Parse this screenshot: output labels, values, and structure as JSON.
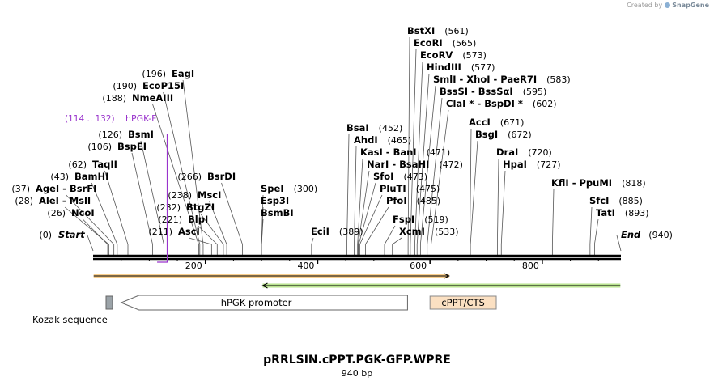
{
  "app": {
    "credit_prefix": "Created by",
    "credit_brand": "SnapGene"
  },
  "map": {
    "title": "pRRLSIN.cPPT.PGK-GFP.WPRE",
    "length_label": "940 bp",
    "length": 940,
    "ruler_ticks": [
      200,
      400,
      600,
      800
    ],
    "ends": [
      {
        "name": "Start",
        "pos": 0,
        "pos_label": "(0)"
      },
      {
        "name": "End",
        "pos": 940,
        "pos_label": "(940)"
      }
    ]
  },
  "sites": [
    {
      "label": "NcoI",
      "pos": 26,
      "pos_label": "(26)"
    },
    {
      "label": "AleI  -  MslI",
      "pos": 28,
      "pos_label": "(28)"
    },
    {
      "label": "AgeI  -  BsrFI",
      "pos": 37,
      "pos_label": "(37)"
    },
    {
      "label": "BamHI",
      "pos": 43,
      "pos_label": "(43)"
    },
    {
      "label": "TaqII",
      "pos": 62,
      "pos_label": "(62)"
    },
    {
      "label": "BspEI",
      "pos": 106,
      "pos_label": "(106)"
    },
    {
      "label": "BsmI",
      "pos": 126,
      "pos_label": "(126)"
    },
    {
      "label": "NmeAIII",
      "pos": 188,
      "pos_label": "(188)"
    },
    {
      "label": "EcoP15I",
      "pos": 190,
      "pos_label": "(190)"
    },
    {
      "label": "EagI",
      "pos": 196,
      "pos_label": "(196)"
    },
    {
      "label": "AscI",
      "pos": 211,
      "pos_label": "(211)"
    },
    {
      "label": "BlpI",
      "pos": 221,
      "pos_label": "(221)"
    },
    {
      "label": "BtgZI",
      "pos": 232,
      "pos_label": "(232)"
    },
    {
      "label": "MscI",
      "pos": 238,
      "pos_label": "(238)"
    },
    {
      "label": "BsrDI",
      "pos": 266,
      "pos_label": "(266)"
    },
    {
      "label": "SpeI",
      "pos": 300,
      "pos_label": "(300)"
    },
    {
      "label": "Esp3I",
      "pos": 300,
      "pos_label": ""
    },
    {
      "label": "BsmBI",
      "pos": 300,
      "pos_label": ""
    },
    {
      "label": "EciI",
      "pos": 389,
      "pos_label": "(389)"
    },
    {
      "label": "BsaI",
      "pos": 452,
      "pos_label": "(452)"
    },
    {
      "label": "AhdI",
      "pos": 465,
      "pos_label": "(465)"
    },
    {
      "label": "KasI  -  BanI",
      "pos": 471,
      "pos_label": "(471)"
    },
    {
      "label": "NarI  -  BsaHI",
      "pos": 472,
      "pos_label": "(472)"
    },
    {
      "label": "SfoI",
      "pos": 473,
      "pos_label": "(473)"
    },
    {
      "label": "PluTI",
      "pos": 475,
      "pos_label": "(475)"
    },
    {
      "label": "PfoI",
      "pos": 485,
      "pos_label": "(485)"
    },
    {
      "label": "FspI",
      "pos": 519,
      "pos_label": "(519)"
    },
    {
      "label": "XcmI",
      "pos": 533,
      "pos_label": "(533)"
    },
    {
      "label": "BstXI",
      "pos": 561,
      "pos_label": "(561)"
    },
    {
      "label": "EcoRI",
      "pos": 565,
      "pos_label": "(565)"
    },
    {
      "label": "EcoRV",
      "pos": 573,
      "pos_label": "(573)"
    },
    {
      "label": "HindIII",
      "pos": 577,
      "pos_label": "(577)"
    },
    {
      "label": "SmlI  -  XhoI  -  PaeR7I",
      "pos": 583,
      "pos_label": "(583)"
    },
    {
      "label": "BssSI  -  BssSαI",
      "pos": 595,
      "pos_label": "(595)"
    },
    {
      "label": "ClaI *  -  BspDI *",
      "pos": 602,
      "pos_label": "(602)"
    },
    {
      "label": "AccI",
      "pos": 671,
      "pos_label": "(671)"
    },
    {
      "label": "BsgI",
      "pos": 672,
      "pos_label": "(672)"
    },
    {
      "label": "DraI",
      "pos": 720,
      "pos_label": "(720)"
    },
    {
      "label": "HpaI",
      "pos": 727,
      "pos_label": "(727)"
    },
    {
      "label": "KflI  -  PpuMI",
      "pos": 818,
      "pos_label": "(818)"
    },
    {
      "label": "SfcI",
      "pos": 885,
      "pos_label": "(885)"
    },
    {
      "label": "TatI",
      "pos": 893,
      "pos_label": "(893)"
    }
  ],
  "primer": {
    "name": "hPGK-F",
    "range_label": "(114 .. 132)",
    "start": 114,
    "end": 132,
    "color": "#9933cc"
  },
  "features": [
    {
      "name": "hPGK promoter",
      "type": "promoter",
      "start": 50,
      "end": 560,
      "direction": "reverse"
    },
    {
      "name": "cPPT/CTS",
      "type": "misc",
      "start": 600,
      "end": 718,
      "direction": "none",
      "color": "#fbe0c2"
    },
    {
      "name": "Kozak sequence",
      "type": "kozak",
      "start": 25,
      "end": 35,
      "direction": "none",
      "color": "#9ba3a8"
    }
  ],
  "orfs": [
    {
      "start": 1,
      "end": 634,
      "direction": "forward",
      "color": "#f2a530"
    },
    {
      "start": 302,
      "end": 939,
      "direction": "reverse",
      "color": "#7cc832"
    }
  ]
}
